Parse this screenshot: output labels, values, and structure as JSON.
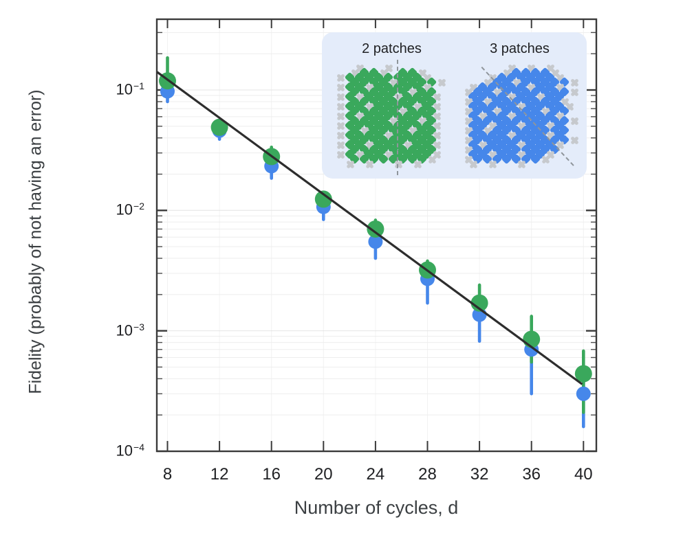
{
  "axes": {
    "xlabel": "Number of cycles, d",
    "ylabel": "Fidelity (probably of not having an error)",
    "x_ticks": [
      8,
      12,
      16,
      20,
      24,
      28,
      32,
      36,
      40
    ],
    "y_tick_exponents": [
      -1,
      -2,
      -3,
      -4
    ]
  },
  "chart_data": {
    "type": "scatter",
    "yscale": "log",
    "grid": true,
    "xlabel": "Number of cycles, d",
    "ylabel": "Fidelity (probably of not having an error)",
    "xlim": [
      7.2,
      41
    ],
    "ylim": [
      0.0001,
      0.39
    ],
    "x": [
      8,
      12,
      16,
      20,
      24,
      28,
      32,
      36,
      40
    ],
    "series": [
      {
        "name": "2 patches",
        "color": "#3aa85c",
        "marker": "circle",
        "values": [
          0.119,
          0.049,
          0.028,
          0.0124,
          0.007,
          0.0032,
          0.0017,
          0.00085,
          0.00044
        ],
        "err_lo": [
          0.1,
          0.043,
          0.024,
          0.011,
          0.006,
          0.0027,
          0.0013,
          0.00055,
          0.00021
        ],
        "err_hi": [
          0.185,
          0.056,
          0.0335,
          0.014,
          0.0083,
          0.0038,
          0.0024,
          0.00132,
          0.00068
        ]
      },
      {
        "name": "3 patches",
        "color": "#4687ea",
        "marker": "circle",
        "values": [
          0.0975,
          0.046,
          0.0233,
          0.0107,
          0.0055,
          0.0027,
          0.00136,
          0.0007,
          0.0003
        ],
        "err_lo": [
          0.08,
          0.039,
          0.0185,
          0.0084,
          0.004,
          0.0017,
          0.00082,
          0.0003,
          0.00016
        ],
        "err_hi": [
          0.115,
          0.05,
          0.026,
          0.0118,
          0.0062,
          0.0031,
          0.0016,
          0.00085,
          0.0004
        ]
      }
    ],
    "fit_line": {
      "color": "#2d2d2d",
      "d_start": 7.2,
      "v_start": 0.141,
      "d_end": 39.9,
      "v_end": 0.00036
    }
  },
  "inset": {
    "bg": "#e4ecfa",
    "divider_color": "#8f959b",
    "cross_color": "#c6c9cd",
    "panels": [
      {
        "label": "2 patches",
        "color": "#3aa85c",
        "divider": "vertical-dashed",
        "pattern": [
          "..x..x.....",
          ".xGGx.GGx..",
          "xGGGGGGGGx.",
          ".GGGGxGGGGx",
          "xGGxGGGGGx.",
          ".GGGGGGxGG.",
          "xGxGGGxGGGx",
          ".GGGGGGGGG.",
          "xGGxGGGGxGx",
          ".GGGGGxGGG.",
          "xGxGGGGGGGx",
          ".GGGGxGGxG.",
          "xGGGGGGGGGx",
          ".GxGGGGxGG.",
          "xGGGGxGGGGx",
          ".GGGGGGGGG.",
          "xGGxGGGxGGx",
          ".GGGGGGGGG.",
          "xGxGGxGGGGx",
          ".GGGGGGGGx.",
          ".x.x..x.x.."
        ]
      },
      {
        "label": "3 patches",
        "color": "#4687ea",
        "divider": "diagonal-dashed",
        "pattern": [
          ".....x.x.x..",
          "....xBBBBx..",
          "...xBBBBBBx.",
          "..xBBxBBBBBx",
          ".xBBBBBxBBx.",
          "xBBxBBBBBBBx",
          ".BBBBxBBxBB.",
          "xBxBBBBBBBx.",
          ".BBBBBxBBBBx",
          "xBBxBBBBxBB.",
          ".BxBBxBBBBx.",
          "xBBBBBBBBBBx",
          ".BBxBBxBBxB.",
          "xBxBBBBBBBB.",
          ".BBBBxBBBxB.",
          "xBBBBBBBBBBx",
          ".BxBBBxBBBx.",
          "xBBBBBBBBB..",
          ".BBxBBxBBx..",
          "xBBBBBBBx...",
          ".x.x..x....."
        ]
      }
    ]
  }
}
